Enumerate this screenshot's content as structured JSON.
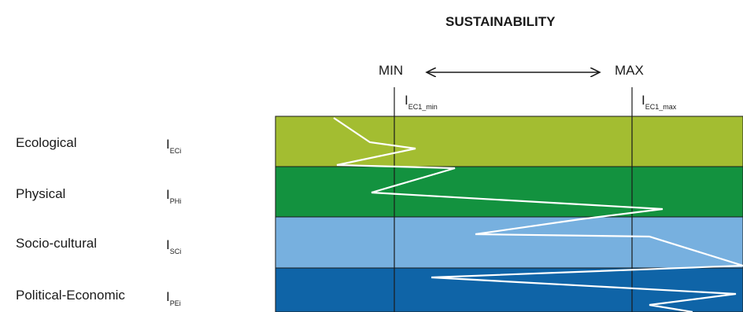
{
  "title": "SUSTAINABILITY",
  "scale": {
    "min_label": "MIN",
    "max_label": "MAX"
  },
  "thresholds": {
    "min": {
      "main": "I",
      "sub": "EC1_min"
    },
    "max": {
      "main": "I",
      "sub": "EC1_max"
    }
  },
  "rows": [
    {
      "label": "Ecological",
      "indicator_main": "I",
      "indicator_sub": "ECi",
      "color": "#a3bd31"
    },
    {
      "label": "Physical",
      "indicator_main": "I",
      "indicator_sub": "PHi",
      "color": "#13923f"
    },
    {
      "label": "Socio-cultural",
      "indicator_main": "I",
      "indicator_sub": "SCi",
      "color": "#77b0df"
    },
    {
      "label": "Political-Economic",
      "indicator_main": "I",
      "indicator_sub": "PEi",
      "color": "#0f64a7"
    }
  ],
  "colors": {
    "profile_line": "#ffffff",
    "threshold_line": "#1a1a1a",
    "band_border": "#1a1a1a"
  }
}
